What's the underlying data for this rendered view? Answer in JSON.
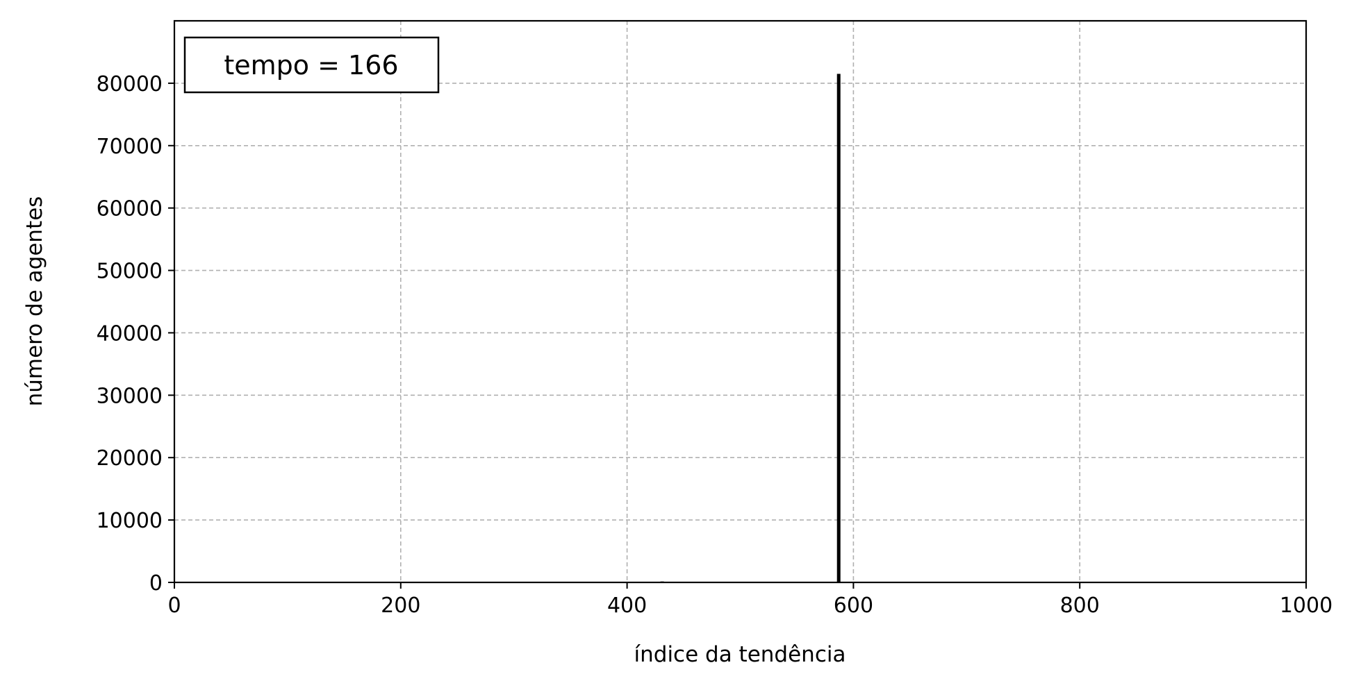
{
  "chart_data": {
    "type": "bar",
    "xlabel": "índice da tendência",
    "ylabel": "número de agentes",
    "annotation": "tempo = 166",
    "legend": "none",
    "xlim": [
      0,
      1000
    ],
    "ylim": [
      0,
      90000
    ],
    "x_ticks": [
      0,
      200,
      400,
      600,
      800,
      1000
    ],
    "y_ticks": [
      0,
      10000,
      20000,
      30000,
      40000,
      50000,
      60000,
      70000,
      80000
    ],
    "grid": true,
    "grid_style": "dashed",
    "bar_color": "#000000",
    "grid_color": "#b0b0b0",
    "bars": [
      {
        "x": 431,
        "value": 150
      },
      {
        "x": 587,
        "value": 81500
      }
    ]
  }
}
